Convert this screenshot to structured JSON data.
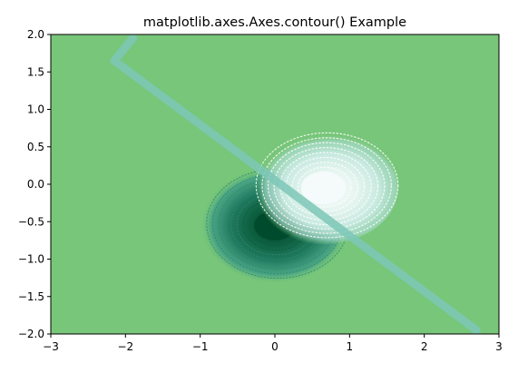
{
  "chart_data": {
    "type": "contour",
    "title": "matplotlib.axes.Axes.contour() Example",
    "xlabel": "",
    "ylabel": "",
    "xlim": [
      -3,
      3
    ],
    "ylim": [
      -2,
      2
    ],
    "xticks": [
      -3,
      -2,
      -1,
      0,
      1,
      2,
      3
    ],
    "yticks": [
      -2.0,
      -1.5,
      -1.0,
      -0.5,
      0.0,
      0.5,
      1.0,
      1.5,
      2.0
    ],
    "xtick_labels": [
      "−3",
      "−2",
      "−1",
      "0",
      "1",
      "2",
      "3"
    ],
    "ytick_labels": [
      "−2.0",
      "−1.5",
      "−1.0",
      "−0.5",
      "0.0",
      "0.5",
      "1.0",
      "1.5",
      "2.0"
    ],
    "colormap": "BuGn",
    "background_color": "#78c679",
    "grid": false,
    "features": [
      {
        "kind": "low-peak",
        "center": [
          0.0,
          -0.55
        ],
        "color": "#004a2c"
      },
      {
        "kind": "high-peak",
        "center": [
          0.65,
          -0.05
        ],
        "color": "#f4fbfa"
      },
      {
        "kind": "line",
        "points": [
          [
            -1.9,
            1.95
          ],
          [
            -2.15,
            1.65
          ],
          [
            2.7,
            -1.95
          ]
        ],
        "color": "#7cc7b7"
      }
    ]
  }
}
